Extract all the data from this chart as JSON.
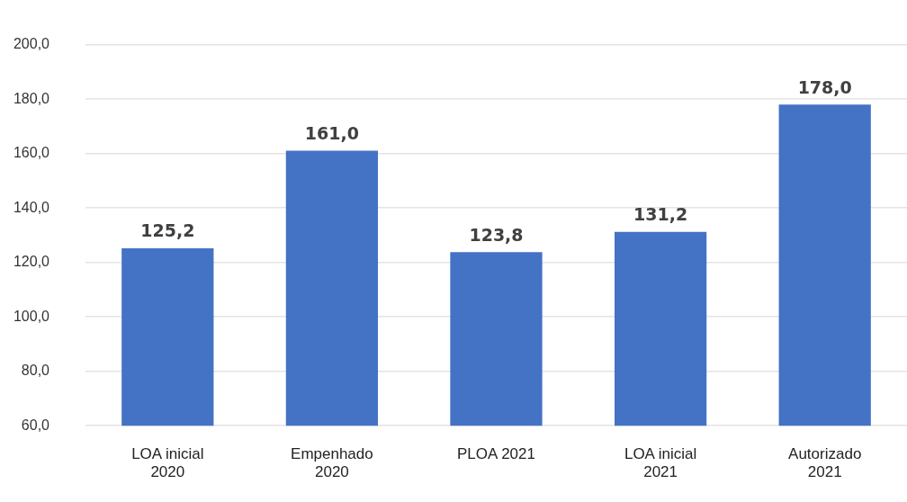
{
  "chart_data": {
    "type": "bar",
    "categories": [
      "LOA inicial\n2020",
      "Empenhado\n2020",
      "PLOA 2021",
      "LOA inicial\n2021",
      "Autorizado\n2021"
    ],
    "values": [
      125.2,
      161.0,
      123.8,
      131.2,
      178.0
    ],
    "value_labels": [
      "125,2",
      "161,0",
      "123,8",
      "131,2",
      "178,0"
    ],
    "color": "#4472c4",
    "ylim": [
      60,
      200
    ],
    "yticks": [
      {
        "value": 60,
        "label": "60,0"
      },
      {
        "value": 80,
        "label": "80,0"
      },
      {
        "value": 100,
        "label": "100,0"
      },
      {
        "value": 120,
        "label": "120,0"
      },
      {
        "value": 140,
        "label": "140,0"
      },
      {
        "value": 160,
        "label": "160,0"
      },
      {
        "value": 180,
        "label": "180,0"
      },
      {
        "value": 200,
        "label": "200,0"
      }
    ],
    "grid": "y",
    "legend": false
  }
}
